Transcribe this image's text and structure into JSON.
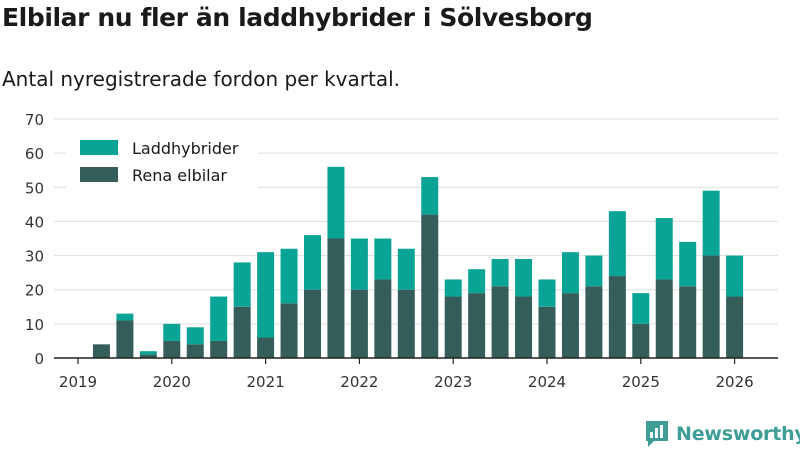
{
  "title": "Elbilar nu fler än laddhybrider i Sölvesborg",
  "subtitle": "Antal nyregistrerade fordon per kvartal.",
  "brand": {
    "name": "Newsworthy",
    "icon": "newsworthy-logo-icon"
  },
  "colors": {
    "plugin_hybrid": "#0aa497",
    "electric": "#355e5a",
    "grid": "#dddddd",
    "axis": "#222222",
    "brand": "#3f9d97"
  },
  "chart_data": {
    "type": "bar",
    "stacked": true,
    "title": "Elbilar nu fler än laddhybrider i Sölvesborg",
    "subtitle": "Antal nyregistrerade fordon per kvartal.",
    "xlabel": "",
    "ylabel": "",
    "ylim": [
      0,
      70
    ],
    "y_ticks": [
      0,
      10,
      20,
      30,
      40,
      50,
      60,
      70
    ],
    "x_ticks": [
      "2019",
      "2020",
      "2021",
      "2022",
      "2023",
      "2024",
      "2025",
      "2026"
    ],
    "legend_position": "top-left",
    "grid": true,
    "categories": [
      "2019 Q1",
      "2019 Q2",
      "2019 Q3",
      "2019 Q4",
      "2020 Q1",
      "2020 Q2",
      "2020 Q3",
      "2020 Q4",
      "2021 Q1",
      "2021 Q2",
      "2021 Q3",
      "2021 Q4",
      "2022 Q1",
      "2022 Q2",
      "2022 Q3",
      "2022 Q4",
      "2023 Q1",
      "2023 Q2",
      "2023 Q3",
      "2023 Q4",
      "2024 Q1",
      "2024 Q2",
      "2024 Q3",
      "2024 Q4",
      "2025 Q1",
      "2025 Q2",
      "2025 Q3",
      "2025 Q4",
      "2026 Q1"
    ],
    "series": [
      {
        "name": "Rena elbilar",
        "values": [
          0,
          4,
          11,
          1,
          5,
          4,
          5,
          15,
          6,
          16,
          20,
          35,
          20,
          23,
          20,
          42,
          18,
          19,
          21,
          18,
          15,
          19,
          21,
          24,
          10,
          23,
          21,
          30,
          18
        ]
      },
      {
        "name": "Laddhybrider",
        "values": [
          0,
          0,
          2,
          1,
          5,
          5,
          13,
          13,
          25,
          16,
          16,
          21,
          15,
          12,
          12,
          11,
          5,
          7,
          8,
          11,
          8,
          12,
          9,
          19,
          9,
          18,
          13,
          19,
          12
        ]
      }
    ]
  }
}
